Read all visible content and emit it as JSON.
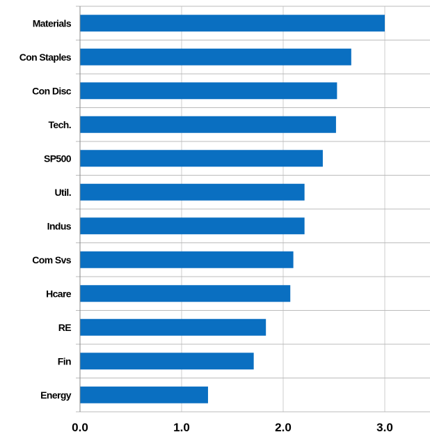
{
  "chart_data": {
    "type": "bar",
    "orientation": "horizontal",
    "categories": [
      "Materials",
      "Con Staples",
      "Con Disc",
      "Tech.",
      "SP500",
      "Util.",
      "Indus",
      "Com Svs",
      "Hcare",
      "RE",
      "Fin",
      "Energy"
    ],
    "values": [
      3.0,
      2.67,
      2.53,
      2.52,
      2.39,
      2.21,
      2.21,
      2.1,
      2.07,
      1.83,
      1.71,
      1.26
    ],
    "title": "",
    "xlabel": "",
    "ylabel": "",
    "xlim": [
      0,
      3.5
    ],
    "xticks": [
      0.0,
      1.0,
      2.0,
      3.0
    ],
    "xtick_labels": [
      "0.0",
      "1.0",
      "2.0",
      "3.0"
    ],
    "grid": "vertical",
    "bar_color": "#0A6FC1",
    "grid_color": "#CCCCCC"
  }
}
